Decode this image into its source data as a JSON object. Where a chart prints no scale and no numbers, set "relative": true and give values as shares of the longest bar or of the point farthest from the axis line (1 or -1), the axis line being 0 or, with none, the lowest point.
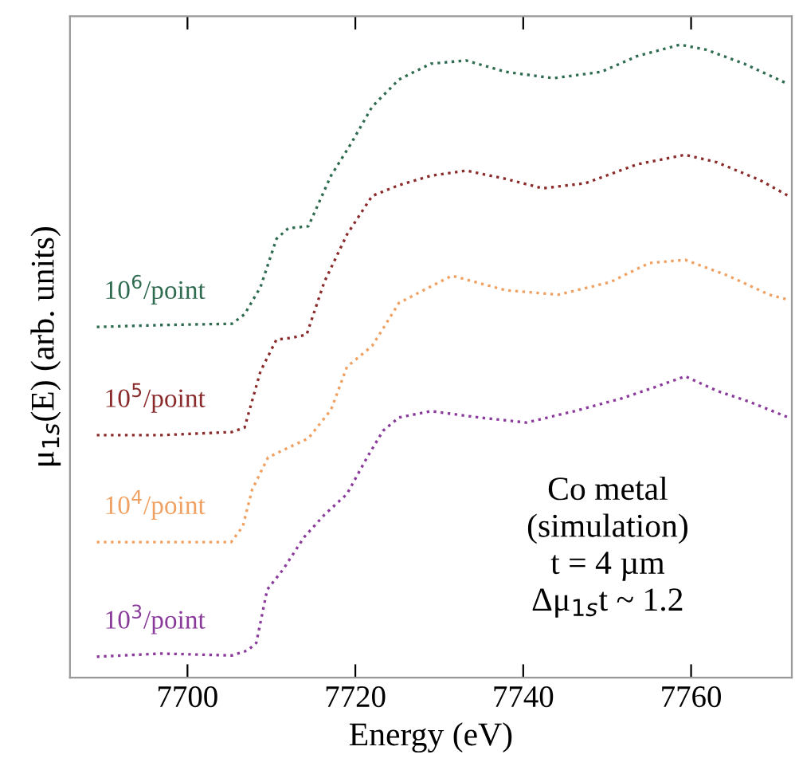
{
  "chart_data": {
    "type": "line",
    "relative": true,
    "xlabel": "Energy (eV)",
    "ylabel": "μ$_{1s}$(E) (arb. units)",
    "xlim": [
      7686,
      7772
    ],
    "xticks": [
      7700,
      7720,
      7740,
      7760
    ],
    "line_style": "dotted",
    "legend": false,
    "grid": false,
    "annotations": [
      "Co metal\n(simulation)\nt = 4 µm\nΔμ$_{1s}$t ~ 1.2"
    ],
    "series": [
      {
        "name": "10$^{6}$/point",
        "color": "#2e6b4f",
        "x": [
          7689.2,
          7696.8,
          7705.3,
          7706.8,
          7708.7,
          7710.6,
          7712,
          7714.4,
          7717.1,
          7719.5,
          7722,
          7725.2,
          7729,
          7733.2,
          7737.9,
          7743.6,
          7749.3,
          7753.6,
          7758.7,
          7761.8,
          7766.3,
          7771.2
        ],
        "values": [
          0.554,
          0.557,
          0.559,
          0.574,
          0.617,
          0.693,
          0.71,
          0.713,
          0.793,
          0.844,
          0.902,
          0.945,
          0.97,
          0.975,
          0.957,
          0.947,
          0.957,
          0.982,
          1.0,
          0.992,
          0.97,
          0.94
        ]
      },
      {
        "name": "10$^{5}$/point",
        "color": "#8b2a2a",
        "x": [
          7689.2,
          7696.8,
          7705.3,
          7706.8,
          7708.7,
          7710.6,
          7712.5,
          7714.2,
          7716.3,
          7719,
          7722,
          7725.2,
          7729,
          7733.2,
          7737.9,
          7742.3,
          7747.4,
          7753.6,
          7759.3,
          7763.1,
          7768.2,
          7771.6
        ],
        "values": [
          0.383,
          0.383,
          0.388,
          0.395,
          0.484,
          0.534,
          0.537,
          0.542,
          0.625,
          0.7,
          0.761,
          0.778,
          0.793,
          0.801,
          0.788,
          0.773,
          0.781,
          0.811,
          0.826,
          0.814,
          0.786,
          0.761
        ]
      },
      {
        "name": "10$^{4}$/point",
        "color": "#f0a060",
        "x": [
          7689.2,
          7696.8,
          7705.2,
          7706.6,
          7707.7,
          7709.6,
          7712.3,
          7714.4,
          7717.1,
          7719,
          7722,
          7725.2,
          7731.5,
          7737.9,
          7744.2,
          7750.4,
          7755,
          7759.3,
          7764.4,
          7769.3,
          7771.6
        ],
        "values": [
          0.214,
          0.214,
          0.214,
          0.239,
          0.297,
          0.348,
          0.365,
          0.378,
          0.423,
          0.491,
          0.524,
          0.592,
          0.635,
          0.612,
          0.605,
          0.625,
          0.655,
          0.66,
          0.635,
          0.605,
          0.597
        ]
      },
      {
        "name": "10$^{3}$/point",
        "color": "#8a3a9a",
        "x": [
          7689.2,
          7696.8,
          7705.3,
          7707.2,
          7708.2,
          7709.5,
          7711.4,
          7713.9,
          7716.3,
          7719,
          7721.4,
          7723.3,
          7725.2,
          7729,
          7734.7,
          7740.4,
          7746.1,
          7751.7,
          7755.5,
          7759.3,
          7763.1,
          7766.9,
          7771.6
        ],
        "values": [
          0.033,
          0.038,
          0.035,
          0.043,
          0.055,
          0.139,
          0.171,
          0.222,
          0.257,
          0.29,
          0.348,
          0.39,
          0.411,
          0.421,
          0.411,
          0.403,
          0.421,
          0.441,
          0.458,
          0.476,
          0.453,
          0.436,
          0.411
        ]
      }
    ]
  }
}
